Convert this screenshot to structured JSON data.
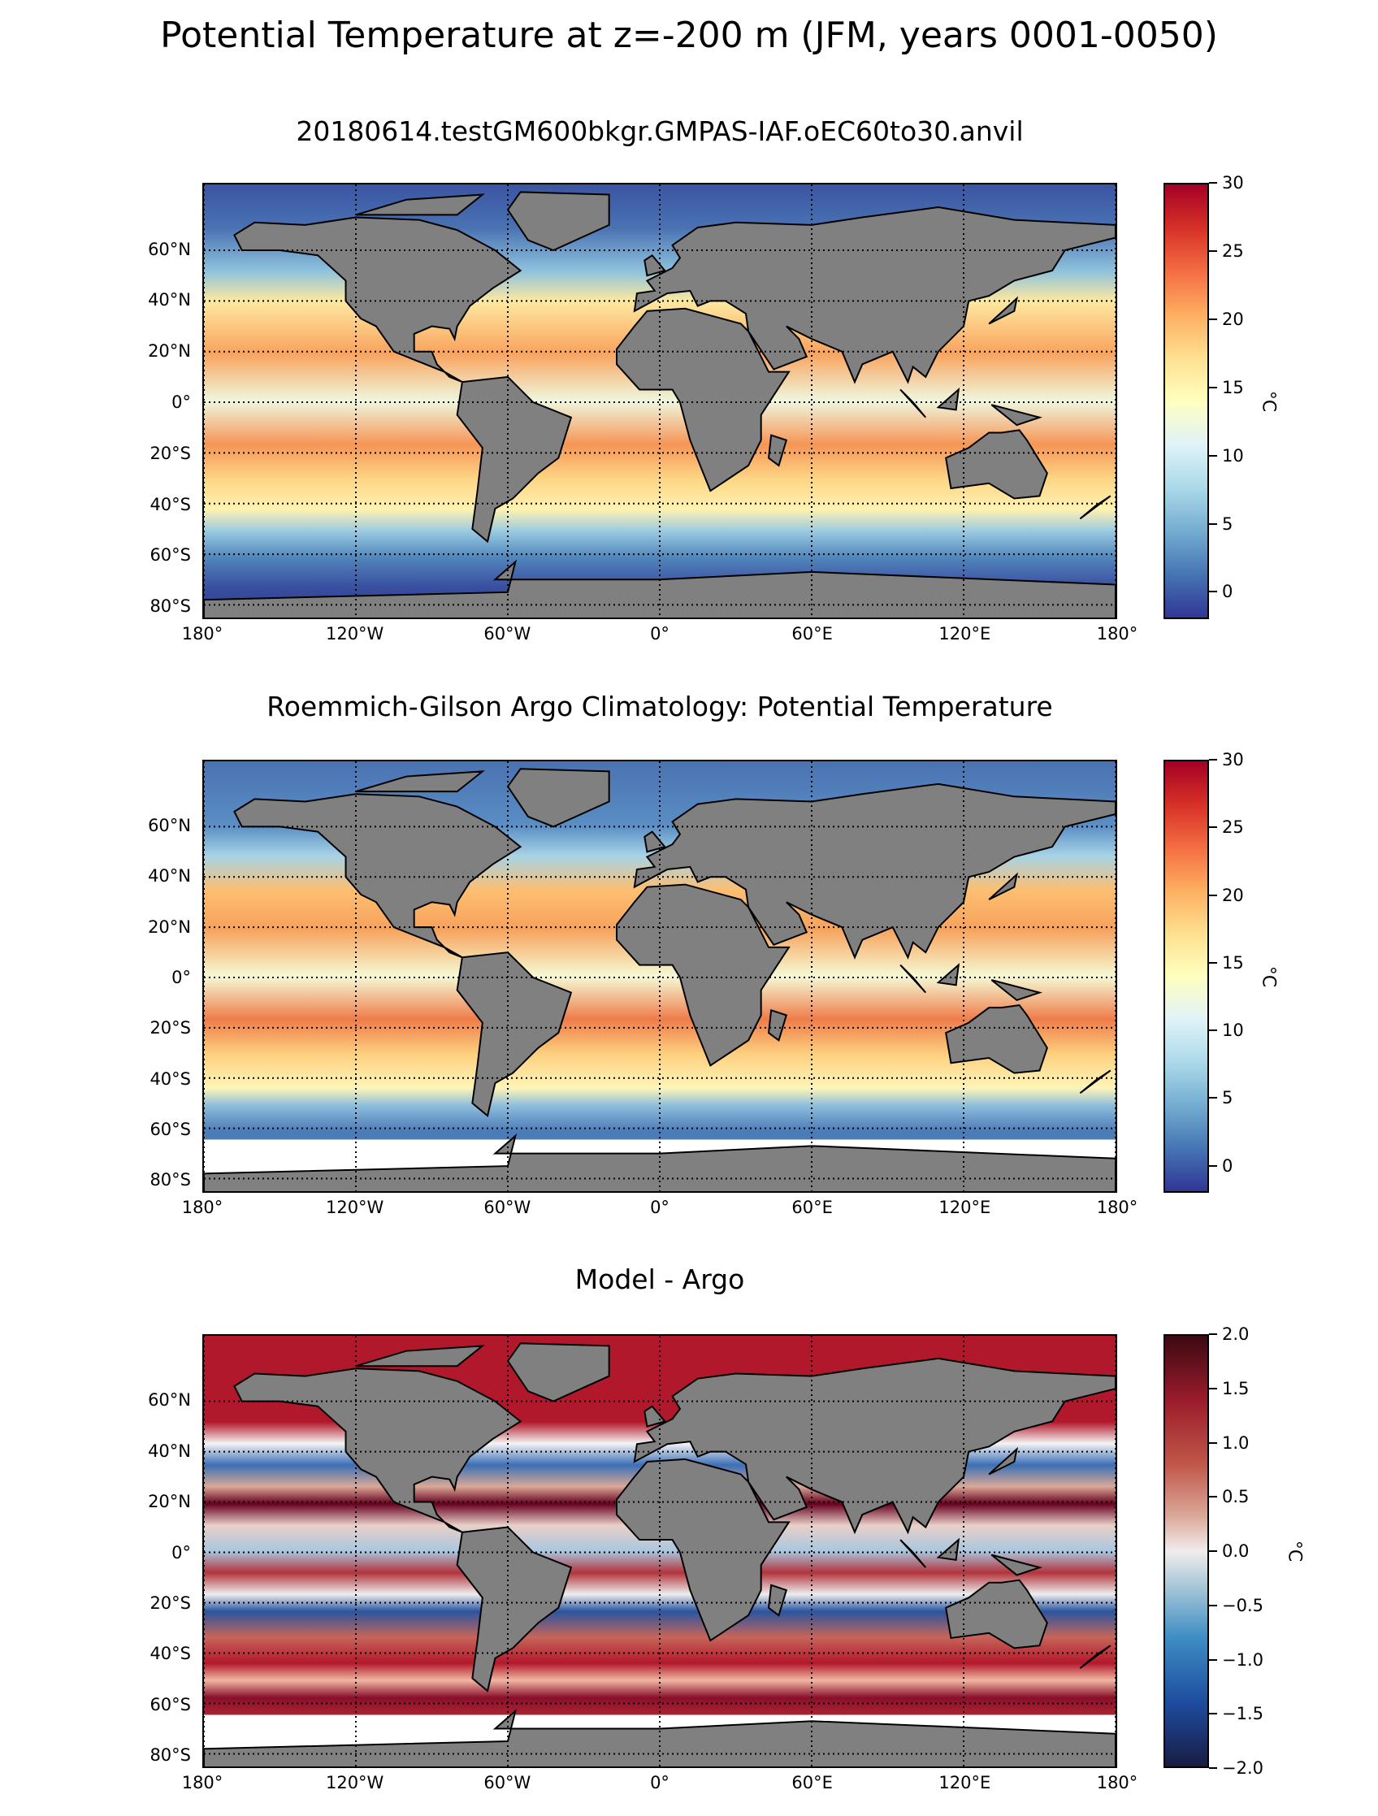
{
  "title": "Potential Temperature at z=-200 m (JFM, years 0001-0050)",
  "panels": [
    {
      "title": "20180614.testGM600bkgr.GMPAS-IAF.oEC60to30.anvil",
      "colorbar": {
        "min": -2,
        "max": 30,
        "ticks": [
          "0",
          "5",
          "10",
          "15",
          "20",
          "25",
          "30"
        ],
        "tick_values": [
          0,
          5,
          10,
          15,
          20,
          25,
          30
        ],
        "unit": "°C",
        "colormap": "RdYlBu_r"
      }
    },
    {
      "title": "Roemmich-Gilson Argo Climatology: Potential Temperature",
      "colorbar": {
        "min": -2,
        "max": 30,
        "ticks": [
          "0",
          "5",
          "10",
          "15",
          "20",
          "25",
          "30"
        ],
        "tick_values": [
          0,
          5,
          10,
          15,
          20,
          25,
          30
        ],
        "unit": "°C",
        "colormap": "RdYlBu_r"
      }
    },
    {
      "title": "Model - Argo",
      "colorbar": {
        "min": -2,
        "max": 2,
        "ticks": [
          "−2.0",
          "−1.5",
          "−1.0",
          "−0.5",
          "0.0",
          "0.5",
          "1.0",
          "1.5",
          "2.0"
        ],
        "tick_values": [
          -2,
          -1.5,
          -1,
          -0.5,
          0,
          0.5,
          1,
          1.5,
          2
        ],
        "unit": "°C",
        "colormap": "balance"
      }
    }
  ],
  "lat_labels": [
    "60°N",
    "40°N",
    "20°N",
    "0°",
    "20°S",
    "40°S",
    "60°S",
    "80°S"
  ],
  "lat_values": [
    60,
    40,
    20,
    0,
    -20,
    -40,
    -60,
    -80
  ],
  "lon_labels": [
    "180°",
    "120°W",
    "60°W",
    "0°",
    "60°E",
    "120°E",
    "180°"
  ],
  "lon_values": [
    -180,
    -120,
    -60,
    0,
    60,
    120,
    180
  ],
  "colors": {
    "land": "#808080",
    "coast": "#000000"
  }
}
